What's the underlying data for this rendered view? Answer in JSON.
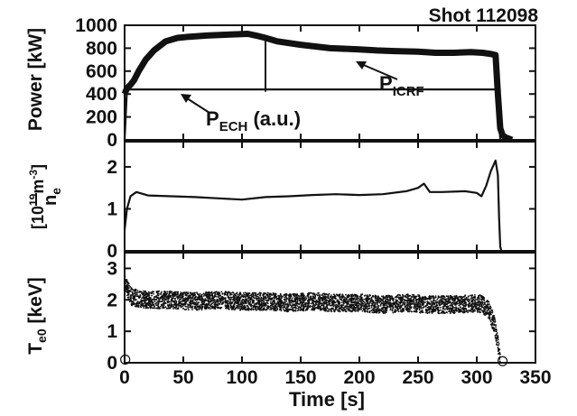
{
  "chart_data": {
    "type": "line",
    "title": "Shot 112098",
    "xlabel": "Time [s]",
    "xlim": [
      0,
      350
    ],
    "xticks": [
      "0",
      "50",
      "100",
      "150",
      "200",
      "250",
      "300",
      "350"
    ],
    "panels": [
      {
        "ylabel": "Power [kW]",
        "ylim": [
          0,
          1000
        ],
        "yticks": [
          "0",
          "200",
          "400",
          "600",
          "800",
          "1000"
        ],
        "series": [
          {
            "name": "P_ICRF",
            "x": [
              0,
              2,
              5,
              8,
              12,
              18,
              25,
              35,
              45,
              55,
              70,
              90,
              105,
              112,
              120,
              130,
              150,
              175,
              200,
              215,
              230,
              250,
              265,
              280,
              295,
              305,
              312,
              316,
              318,
              320,
              322,
              325,
              330
            ],
            "y": [
              400,
              450,
              480,
              520,
              600,
              700,
              780,
              860,
              890,
              900,
              910,
              920,
              925,
              910,
              890,
              860,
              830,
              800,
              790,
              780,
              775,
              770,
              760,
              760,
              765,
              760,
              750,
              740,
              400,
              100,
              40,
              20,
              0
            ]
          },
          {
            "name": "P_ECH (a.u.)",
            "x": [
              0,
              2,
              4,
              6,
              318,
              319,
              320,
              322,
              330
            ],
            "y": [
              0,
              440,
              440,
              440,
              440,
              200,
              0,
              0,
              0
            ]
          }
        ],
        "annotations": [
          {
            "text": "P",
            "sub": "ICRF",
            "points_to": [
              200,
              770
            ]
          },
          {
            "text": "P",
            "sub": "ECH",
            "suffix": " (a.u.)",
            "points_to": [
              18,
              440
            ]
          }
        ]
      },
      {
        "ylabel_main": "n",
        "ylabel_sub": "e",
        "ylabel_unit": "[10",
        "ylabel_exp": "19",
        "ylabel_unit2": "m",
        "ylabel_exp2": "-3",
        "ylabel_end": "]",
        "ylim": [
          0,
          2.6
        ],
        "yticks": [
          "0",
          "1",
          "2"
        ],
        "series": [
          {
            "name": "n_e",
            "x": [
              0,
              2,
              5,
              10,
              20,
              40,
              60,
              80,
              100,
              120,
              140,
              160,
              180,
              200,
              220,
              240,
              250,
              255,
              260,
              270,
              290,
              300,
              304,
              308,
              312,
              316,
              318,
              319,
              320,
              321
            ],
            "y": [
              0.5,
              1.0,
              1.3,
              1.4,
              1.32,
              1.3,
              1.28,
              1.25,
              1.22,
              1.28,
              1.3,
              1.33,
              1.35,
              1.33,
              1.35,
              1.42,
              1.5,
              1.6,
              1.4,
              1.4,
              1.42,
              1.38,
              1.3,
              1.55,
              1.9,
              2.15,
              1.8,
              0.8,
              0.1,
              0
            ]
          }
        ]
      },
      {
        "ylabel_main": "T",
        "ylabel_sub": "e0",
        "ylabel_unit": " [keV]",
        "ylim": [
          0,
          3.5
        ],
        "yticks": [
          "0",
          "1",
          "2",
          "3"
        ],
        "series": [
          {
            "name": "T_e0",
            "style": "scatter",
            "x": [
              0,
              3,
              6,
              10,
              20,
              40,
              60,
              80,
              100,
              120,
              140,
              160,
              180,
              200,
              220,
              240,
              260,
              280,
              300,
              305,
              310,
              315,
              318,
              320
            ],
            "y": [
              2.6,
              2.3,
              2.1,
              2.05,
              2.0,
              2.0,
              1.95,
              2.0,
              1.95,
              1.95,
              1.9,
              1.95,
              1.9,
              1.9,
              1.85,
              1.9,
              1.85,
              1.85,
              1.9,
              1.85,
              1.7,
              1.2,
              0.6,
              0.1
            ],
            "spread": 0.28
          }
        ]
      }
    ],
    "grid": false
  }
}
